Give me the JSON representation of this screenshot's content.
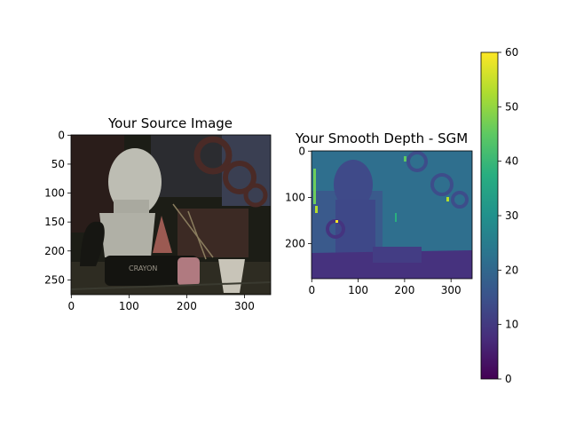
{
  "chart_data": [
    {
      "type": "image",
      "title": "Your Source Image",
      "image_size": [
        346,
        276
      ],
      "x_ticks": [
        0,
        100,
        200,
        300
      ],
      "y_ticks": [
        0,
        50,
        100,
        150,
        200,
        250
      ],
      "content": "grayscale photo: plaster head bust, crayon, bottle, paper cup, dark background"
    },
    {
      "type": "heatmap",
      "title": "Your Smooth Depth - SGM",
      "image_size": [
        346,
        276
      ],
      "x_ticks": [
        0,
        100,
        200,
        300
      ],
      "y_ticks": [
        0,
        100,
        200
      ],
      "colormap": "viridis",
      "colorbar": {
        "min": 0,
        "max": 60,
        "ticks": [
          0,
          10,
          20,
          30,
          40,
          50,
          60
        ]
      }
    }
  ]
}
